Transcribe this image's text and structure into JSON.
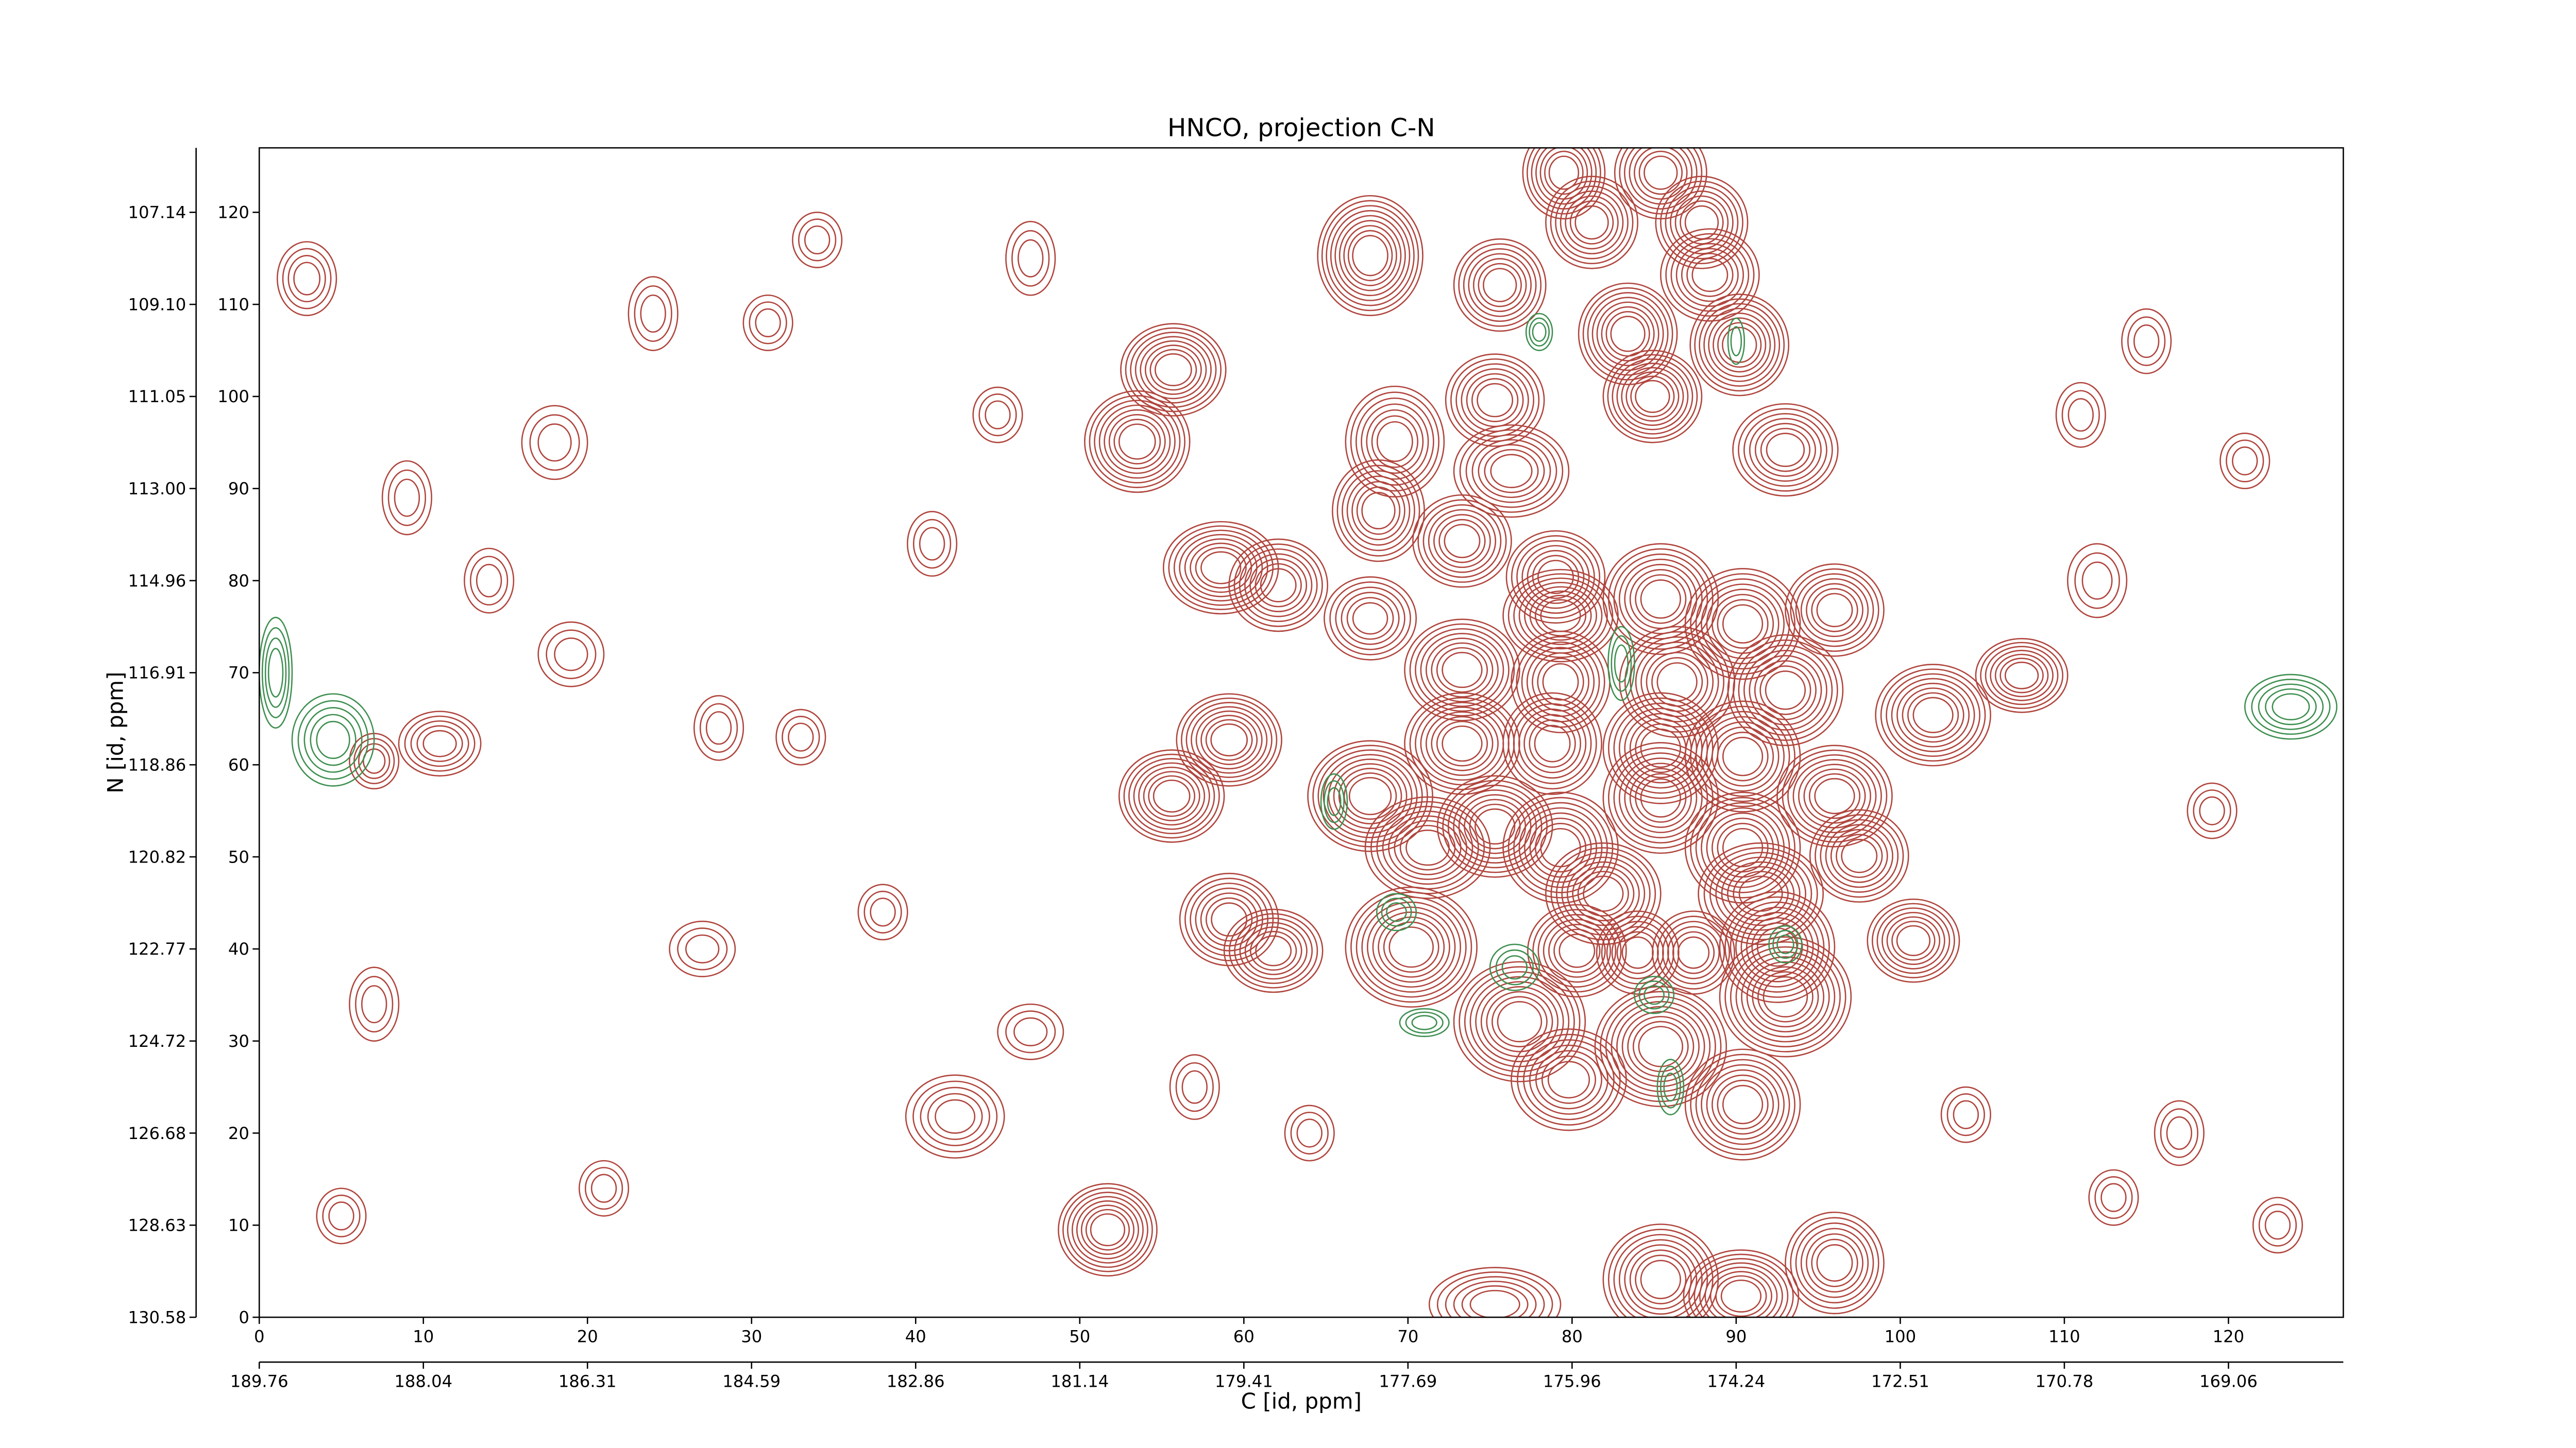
{
  "chart_data": {
    "type": "contour",
    "title": "HNCO, projection C-N",
    "xlabel": "C [id, ppm]",
    "ylabel": "N [id, ppm]",
    "xlim": [
      0,
      127
    ],
    "ylim": [
      0,
      127
    ],
    "xticks": [
      0,
      10,
      20,
      30,
      40,
      50,
      60,
      70,
      80,
      90,
      100,
      110,
      120
    ],
    "yticks": [
      0,
      10,
      20,
      30,
      40,
      50,
      60,
      70,
      80,
      90,
      100,
      110,
      120
    ],
    "x2ticks": [
      {
        "value": 0,
        "label": "189.76"
      },
      {
        "value": 10,
        "label": "188.04"
      },
      {
        "value": 20,
        "label": "186.31"
      },
      {
        "value": 30,
        "label": "184.59"
      },
      {
        "value": 40,
        "label": "182.86"
      },
      {
        "value": 50,
        "label": "181.14"
      },
      {
        "value": 60,
        "label": "179.41"
      },
      {
        "value": 70,
        "label": "177.69"
      },
      {
        "value": 80,
        "label": "175.96"
      },
      {
        "value": 90,
        "label": "174.24"
      },
      {
        "value": 100,
        "label": "172.51"
      },
      {
        "value": 110,
        "label": "170.78"
      },
      {
        "value": 120,
        "label": "169.06"
      }
    ],
    "y2ticks": [
      {
        "value": 0,
        "label": "130.58"
      },
      {
        "value": 10,
        "label": "128.63"
      },
      {
        "value": 20,
        "label": "126.68"
      },
      {
        "value": 30,
        "label": "124.72"
      },
      {
        "value": 40,
        "label": "122.77"
      },
      {
        "value": 50,
        "label": "120.82"
      },
      {
        "value": 60,
        "label": "118.86"
      },
      {
        "value": 70,
        "label": "116.91"
      },
      {
        "value": 80,
        "label": "114.96"
      },
      {
        "value": 90,
        "label": "113.00"
      },
      {
        "value": 100,
        "label": "111.05"
      },
      {
        "value": 110,
        "label": "109.10"
      },
      {
        "value": 120,
        "label": "107.14"
      }
    ],
    "positive_color": "#b0453d",
    "negative_color": "#3e8f50",
    "positive_peaks": [
      [
        67.7,
        115.3,
        3.2,
        6.5,
        9
      ],
      [
        75.6,
        112.1,
        2.8,
        5,
        7
      ],
      [
        79.5,
        124.3,
        2.5,
        5,
        7
      ],
      [
        85.4,
        124.3,
        2.8,
        5,
        7
      ],
      [
        81.2,
        118.9,
        2.8,
        5,
        7
      ],
      [
        87.9,
        118.9,
        2.8,
        5,
        7
      ],
      [
        88.4,
        113.2,
        3,
        5,
        7
      ],
      [
        83.4,
        106.8,
        3,
        5.5,
        8
      ],
      [
        90.2,
        105.6,
        3,
        5.5,
        8
      ],
      [
        84.9,
        100,
        3,
        5,
        8
      ],
      [
        55.7,
        102.9,
        3.2,
        5,
        8
      ],
      [
        75.3,
        99.6,
        3,
        5,
        7
      ],
      [
        53.5,
        95.1,
        3.2,
        5.5,
        8
      ],
      [
        69.2,
        95.1,
        3,
        6,
        7
      ],
      [
        76.3,
        91.9,
        3.5,
        5,
        7
      ],
      [
        93,
        94.2,
        3.2,
        5,
        7
      ],
      [
        68.2,
        87.6,
        2.8,
        5.5,
        7
      ],
      [
        73.3,
        84.3,
        3,
        5,
        7
      ],
      [
        58.6,
        81.4,
        3.5,
        5,
        8
      ],
      [
        62.1,
        79.5,
        3,
        5,
        7
      ],
      [
        79,
        80.4,
        3,
        5,
        7
      ],
      [
        79.3,
        76.2,
        3.5,
        5,
        8
      ],
      [
        67.7,
        75.9,
        2.8,
        4.5,
        6
      ],
      [
        85.4,
        78,
        3.5,
        6,
        8
      ],
      [
        90.4,
        75.3,
        3.5,
        6,
        8
      ],
      [
        96,
        76.8,
        3,
        5,
        7
      ],
      [
        73.3,
        70.3,
        3.5,
        5.5,
        8
      ],
      [
        79.3,
        69,
        3,
        5.5,
        7
      ],
      [
        86.4,
        69,
        3.5,
        6,
        8
      ],
      [
        93,
        68.1,
        3.5,
        6,
        8
      ],
      [
        102,
        65.4,
        3.5,
        5.5,
        8
      ],
      [
        107.4,
        69.7,
        2.8,
        4,
        7
      ],
      [
        59.1,
        62.7,
        3.2,
        5,
        8
      ],
      [
        73.3,
        62.3,
        3.5,
        5.5,
        8
      ],
      [
        78.8,
        62.3,
        3,
        5.5,
        7
      ],
      [
        85.4,
        61.8,
        3.5,
        6,
        8
      ],
      [
        90.4,
        60.9,
        3.5,
        6,
        8
      ],
      [
        55.6,
        56.6,
        3.2,
        5,
        8
      ],
      [
        67.7,
        56.6,
        3.8,
        6,
        9
      ],
      [
        75.3,
        53.3,
        3.5,
        5.5,
        8
      ],
      [
        85.4,
        56.4,
        3.5,
        6,
        8
      ],
      [
        96,
        56.6,
        3.5,
        5.5,
        8
      ],
      [
        71.2,
        51,
        3.8,
        5.5,
        8
      ],
      [
        79.3,
        51,
        3.5,
        6,
        8
      ],
      [
        90.4,
        51,
        3.5,
        6,
        8
      ],
      [
        97.5,
        50.1,
        3,
        5,
        7
      ],
      [
        81.9,
        46,
        3.5,
        5.5,
        8
      ],
      [
        91.5,
        46,
        3.8,
        5.5,
        8
      ],
      [
        59.1,
        43.2,
        3,
        5,
        7
      ],
      [
        61.8,
        39.8,
        3,
        4.5,
        7
      ],
      [
        70.2,
        40.2,
        4,
        6.5,
        9
      ],
      [
        80.3,
        39.8,
        3,
        5,
        7
      ],
      [
        84,
        39.6,
        2.5,
        4.5,
        6
      ],
      [
        87.4,
        39.6,
        2.5,
        4.5,
        6
      ],
      [
        92.5,
        40.2,
        3.5,
        6,
        8
      ],
      [
        100.8,
        40.9,
        2.8,
        4.5,
        7
      ],
      [
        76.8,
        32.1,
        4,
        6.5,
        9
      ],
      [
        93,
        34.8,
        4,
        6.5,
        9
      ],
      [
        85.4,
        29.4,
        4,
        6.5,
        9
      ],
      [
        90.4,
        23.1,
        3.5,
        6,
        8
      ],
      [
        79.8,
        25.8,
        3.5,
        5.5,
        7
      ],
      [
        51.7,
        9.5,
        3,
        5,
        8
      ],
      [
        42.4,
        21.8,
        3,
        4.5,
        5
      ],
      [
        85.4,
        4.1,
        3.5,
        6,
        8
      ],
      [
        90.3,
        2.3,
        3.5,
        5,
        8
      ],
      [
        96,
        5.9,
        3,
        5.5,
        7
      ],
      [
        75.3,
        1.4,
        4,
        4,
        6
      ],
      [
        2.9,
        112.8,
        1.8,
        4,
        4
      ],
      [
        11,
        62.3,
        2.5,
        3.5,
        5
      ],
      [
        7,
        60.4,
        1.5,
        3,
        4
      ],
      [
        24,
        109,
        1.5,
        4,
        3
      ],
      [
        9,
        89,
        1.5,
        4,
        3
      ],
      [
        19,
        72,
        2,
        3.5,
        3
      ],
      [
        28,
        64,
        1.5,
        3.5,
        3
      ],
      [
        31,
        108,
        1.5,
        3,
        3
      ],
      [
        34,
        117,
        1.5,
        3,
        3
      ],
      [
        41,
        84,
        1.5,
        3.5,
        3
      ],
      [
        47,
        31,
        2,
        3,
        3
      ],
      [
        57,
        25,
        1.5,
        3.5,
        3
      ],
      [
        112,
        80,
        1.8,
        4,
        3
      ],
      [
        111,
        98,
        1.5,
        3.5,
        3
      ],
      [
        121,
        93,
        1.5,
        3,
        3
      ],
      [
        117,
        20,
        1.5,
        3.5,
        3
      ],
      [
        123,
        10,
        1.5,
        3,
        3
      ],
      [
        14,
        80,
        1.5,
        3.5,
        3
      ],
      [
        7,
        34,
        1.5,
        4,
        3
      ],
      [
        21,
        14,
        1.5,
        3,
        3
      ],
      [
        33,
        63,
        1.5,
        3,
        3
      ],
      [
        38,
        44,
        1.5,
        3,
        3
      ],
      [
        47,
        115,
        1.5,
        4,
        3
      ],
      [
        119,
        55,
        1.5,
        3,
        3
      ],
      [
        104,
        22,
        1.5,
        3,
        3
      ],
      [
        115,
        106,
        1.5,
        3.5,
        3
      ],
      [
        27,
        40,
        2,
        3,
        3
      ],
      [
        113,
        13,
        1.5,
        3,
        3
      ],
      [
        64,
        20,
        1.5,
        3,
        3
      ],
      [
        45,
        98,
        1.5,
        3,
        3
      ],
      [
        18,
        95,
        2,
        4,
        3
      ],
      [
        5,
        11,
        1.5,
        3,
        3
      ]
    ],
    "negative_peaks": [
      [
        4.5,
        62.7,
        2.5,
        5,
        5
      ],
      [
        123.8,
        66.3,
        2.8,
        3.5,
        5
      ],
      [
        1,
        70,
        1,
        6,
        4
      ],
      [
        65.5,
        56,
        0.8,
        3,
        3
      ],
      [
        69.3,
        44,
        1.2,
        2,
        3
      ],
      [
        76.5,
        38,
        1.5,
        2.5,
        3
      ],
      [
        85,
        35,
        1.2,
        2,
        3
      ],
      [
        93,
        40.5,
        1,
        2,
        3
      ],
      [
        83,
        71,
        0.8,
        4,
        3
      ],
      [
        71,
        32,
        1.5,
        1.5,
        3
      ],
      [
        86,
        25,
        0.8,
        3,
        3
      ],
      [
        78,
        107,
        0.8,
        2,
        3
      ],
      [
        90,
        106,
        0.5,
        2.5,
        2
      ]
    ]
  }
}
